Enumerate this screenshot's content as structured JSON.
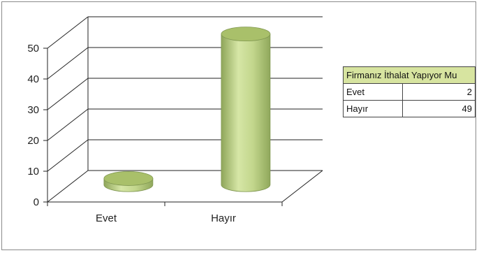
{
  "chart_data": {
    "type": "bar",
    "style": "3d-cylinder",
    "categories": [
      "Evet",
      "Hayır"
    ],
    "values": [
      2,
      49
    ],
    "ylim": [
      0,
      50
    ],
    "yticks": [
      "0",
      "10",
      "20",
      "30",
      "40",
      "50"
    ],
    "grid": true,
    "bar_color": "#b5cc7a"
  },
  "data_table": {
    "header": "Firmanız İthalat Yapıyor Mu",
    "rows": [
      {
        "label": "Evet",
        "value": "2"
      },
      {
        "label": "Hayır",
        "value": "49"
      }
    ],
    "header_color": "#d7e4a0"
  }
}
